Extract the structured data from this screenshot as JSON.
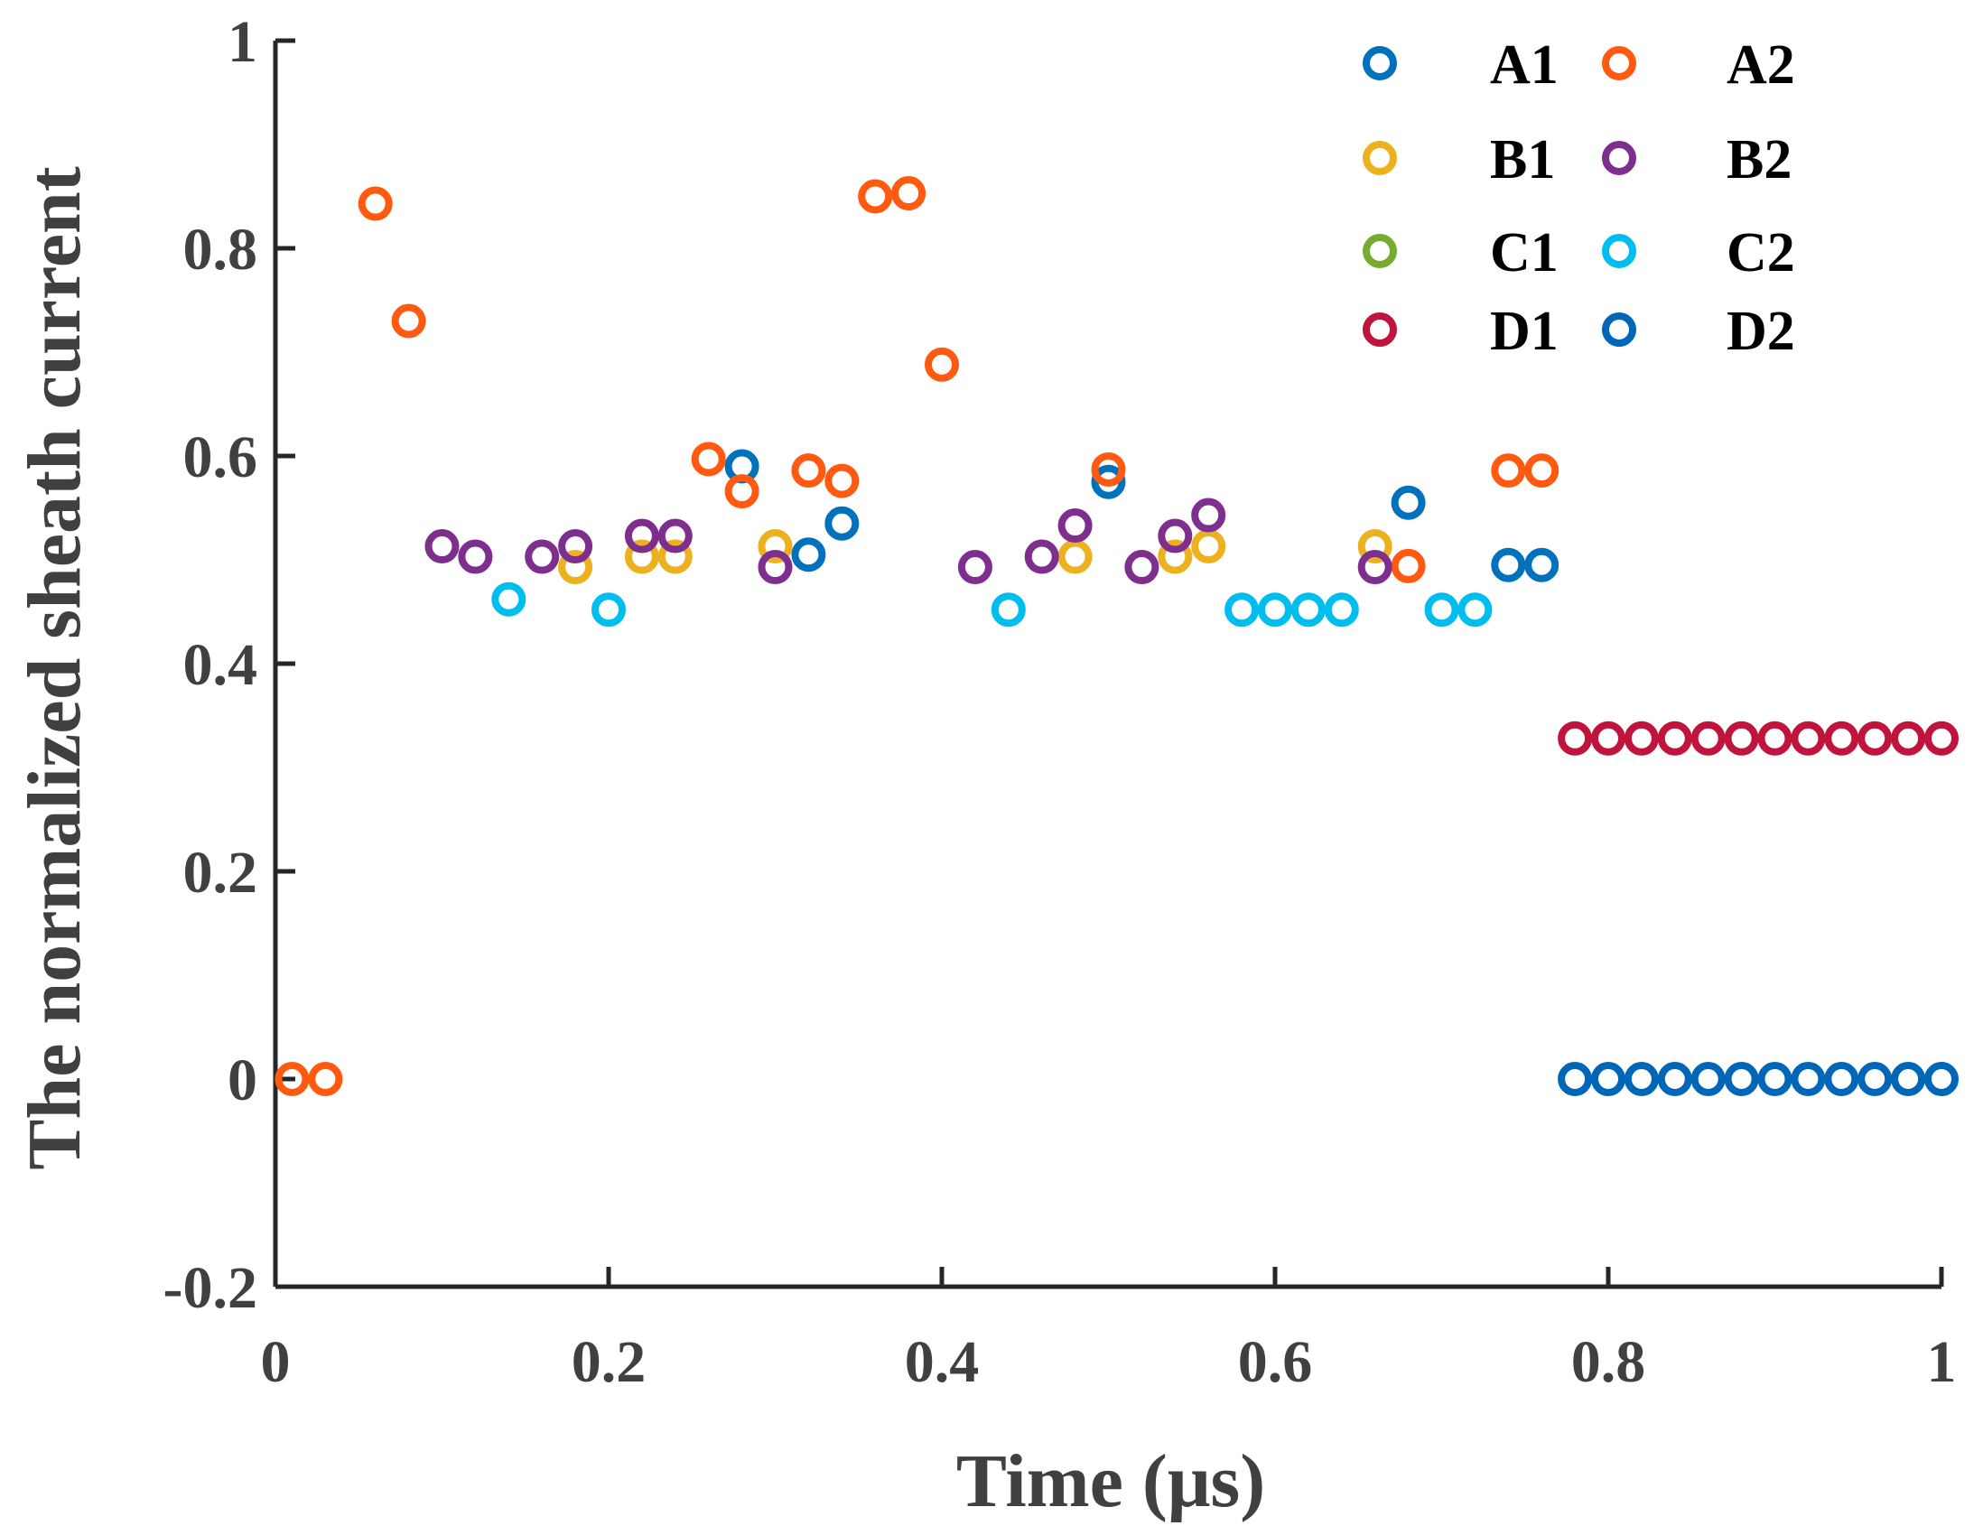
{
  "chart_data": {
    "type": "scatter",
    "title": "",
    "xlabel": "Time (μs)",
    "ylabel": "The normalized sheath current",
    "xlim": [
      0,
      1
    ],
    "ylim": [
      -0.2,
      1
    ],
    "xticks": [
      0,
      0.2,
      0.4,
      0.6,
      0.8,
      1
    ],
    "xtick_labels": [
      "0",
      "0.2",
      "0.4",
      "0.6",
      "0.8",
      "1"
    ],
    "yticks": [
      -0.2,
      0,
      0.2,
      0.4,
      0.6,
      0.8,
      1
    ],
    "ytick_labels": [
      "-0.2",
      "0",
      "0.2",
      "0.4",
      "0.6",
      "0.8",
      "1"
    ],
    "grid": false,
    "legend_position": "top-right",
    "legend_columns": 2,
    "series": [
      {
        "name": "A1",
        "color": "#0072BD",
        "points": [
          [
            0.28,
            0.59
          ],
          [
            0.32,
            0.505
          ],
          [
            0.34,
            0.535
          ],
          [
            0.5,
            0.575
          ],
          [
            0.68,
            0.555
          ],
          [
            0.74,
            0.495
          ],
          [
            0.76,
            0.495
          ]
        ]
      },
      {
        "name": "A2",
        "color": "#FF5A10",
        "points": [
          [
            0.01,
            0
          ],
          [
            0.03,
            0
          ],
          [
            0.06,
            0.843
          ],
          [
            0.08,
            0.73
          ],
          [
            0.26,
            0.597
          ],
          [
            0.28,
            0.566
          ],
          [
            0.32,
            0.586
          ],
          [
            0.34,
            0.576
          ],
          [
            0.36,
            0.85
          ],
          [
            0.38,
            0.853
          ],
          [
            0.4,
            0.688
          ],
          [
            0.5,
            0.587
          ],
          [
            0.68,
            0.494
          ],
          [
            0.74,
            0.586
          ],
          [
            0.76,
            0.586
          ]
        ]
      },
      {
        "name": "B1",
        "color": "#EDB120",
        "points": [
          [
            0.18,
            0.493
          ],
          [
            0.22,
            0.503
          ],
          [
            0.24,
            0.503
          ],
          [
            0.3,
            0.513
          ],
          [
            0.48,
            0.503
          ],
          [
            0.54,
            0.503
          ],
          [
            0.56,
            0.513
          ],
          [
            0.66,
            0.513
          ]
        ]
      },
      {
        "name": "B2",
        "color": "#7E2F8E",
        "points": [
          [
            0.1,
            0.513
          ],
          [
            0.12,
            0.503
          ],
          [
            0.16,
            0.503
          ],
          [
            0.18,
            0.513
          ],
          [
            0.22,
            0.523
          ],
          [
            0.24,
            0.523
          ],
          [
            0.3,
            0.493
          ],
          [
            0.42,
            0.493
          ],
          [
            0.46,
            0.503
          ],
          [
            0.48,
            0.533
          ],
          [
            0.52,
            0.493
          ],
          [
            0.54,
            0.523
          ],
          [
            0.56,
            0.543
          ],
          [
            0.66,
            0.493
          ]
        ]
      },
      {
        "name": "C1",
        "color": "#77AC30",
        "points": []
      },
      {
        "name": "C2",
        "color": "#00BDF0",
        "points": [
          [
            0.14,
            0.462
          ],
          [
            0.2,
            0.452
          ],
          [
            0.44,
            0.452
          ],
          [
            0.58,
            0.452
          ],
          [
            0.6,
            0.452
          ],
          [
            0.62,
            0.452
          ],
          [
            0.64,
            0.452
          ],
          [
            0.7,
            0.452
          ],
          [
            0.72,
            0.452
          ]
        ]
      },
      {
        "name": "D1",
        "color": "#C0143C",
        "points": [
          [
            0.78,
            0.328
          ],
          [
            0.8,
            0.328
          ],
          [
            0.82,
            0.328
          ],
          [
            0.84,
            0.328
          ],
          [
            0.86,
            0.328
          ],
          [
            0.88,
            0.328
          ],
          [
            0.9,
            0.328
          ],
          [
            0.92,
            0.328
          ],
          [
            0.94,
            0.328
          ],
          [
            0.96,
            0.328
          ],
          [
            0.98,
            0.328
          ],
          [
            1.0,
            0.328
          ]
        ]
      },
      {
        "name": "D2",
        "color": "#0066B8",
        "points": [
          [
            0.78,
            0
          ],
          [
            0.8,
            0
          ],
          [
            0.82,
            0
          ],
          [
            0.84,
            0
          ],
          [
            0.86,
            0
          ],
          [
            0.88,
            0
          ],
          [
            0.9,
            0
          ],
          [
            0.92,
            0
          ],
          [
            0.94,
            0
          ],
          [
            0.96,
            0
          ],
          [
            0.98,
            0
          ],
          [
            1.0,
            0
          ]
        ]
      }
    ]
  }
}
